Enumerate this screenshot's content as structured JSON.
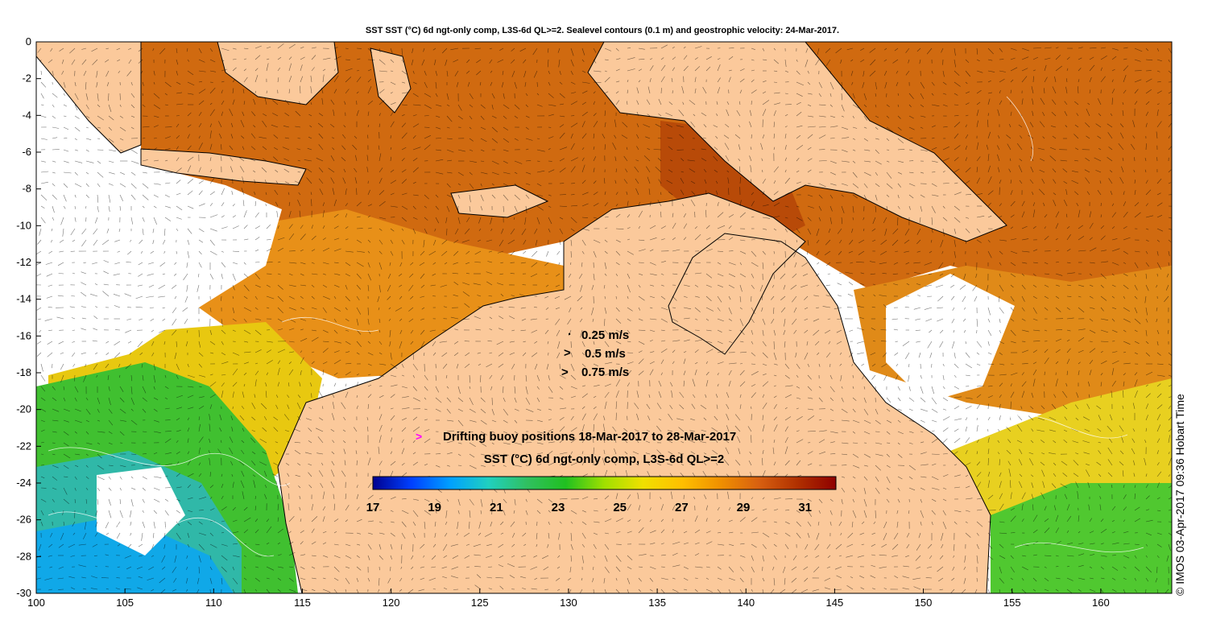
{
  "title": "SST SST (°C) 6d ngt-only comp, L3S-6d QL>=2. Sealevel contours (0.1 m) and geostrophic velocity: 24-Mar-2017.",
  "credit": "© IMOS 03-Apr-2017 09:36 Hobart Time",
  "x_axis": {
    "ticks": [
      100,
      105,
      110,
      115,
      120,
      125,
      130,
      135,
      140,
      145,
      150,
      155,
      160
    ],
    "min": 100,
    "max": 164
  },
  "y_axis": {
    "ticks": [
      0,
      -2,
      -4,
      -6,
      -8,
      -10,
      -12,
      -14,
      -16,
      -18,
      -20,
      -22,
      -24,
      -26,
      -28,
      -30
    ],
    "min": -30,
    "max": 0
  },
  "velocity_legend": [
    {
      "label": "0.25 m/s",
      "arrow": "·"
    },
    {
      "label": "0.5 m/s",
      "arrow": ">"
    },
    {
      "label": "0.75 m/s",
      "arrow": ">"
    }
  ],
  "buoy_legend": {
    "symbol": ">",
    "label": "Drifting buoy positions 18-Mar-2017 to 28-Mar-2017",
    "symbol_color": "#ff00ff"
  },
  "colorbar": {
    "title": "SST (°C) 6d ngt-only comp, L3S-6d QL>=2",
    "min": 17,
    "max": 32,
    "tick_labels": [
      "17",
      "19",
      "21",
      "23",
      "25",
      "27",
      "29",
      "31"
    ],
    "colors": [
      "#00008f",
      "#0040ff",
      "#00a0ff",
      "#20d0c0",
      "#30c060",
      "#20c020",
      "#a0e000",
      "#f0e000",
      "#ffc000",
      "#f09000",
      "#d86010",
      "#b03000",
      "#8f0000"
    ]
  },
  "colors": {
    "land": "#fbc99b",
    "background": "#ffffff"
  }
}
